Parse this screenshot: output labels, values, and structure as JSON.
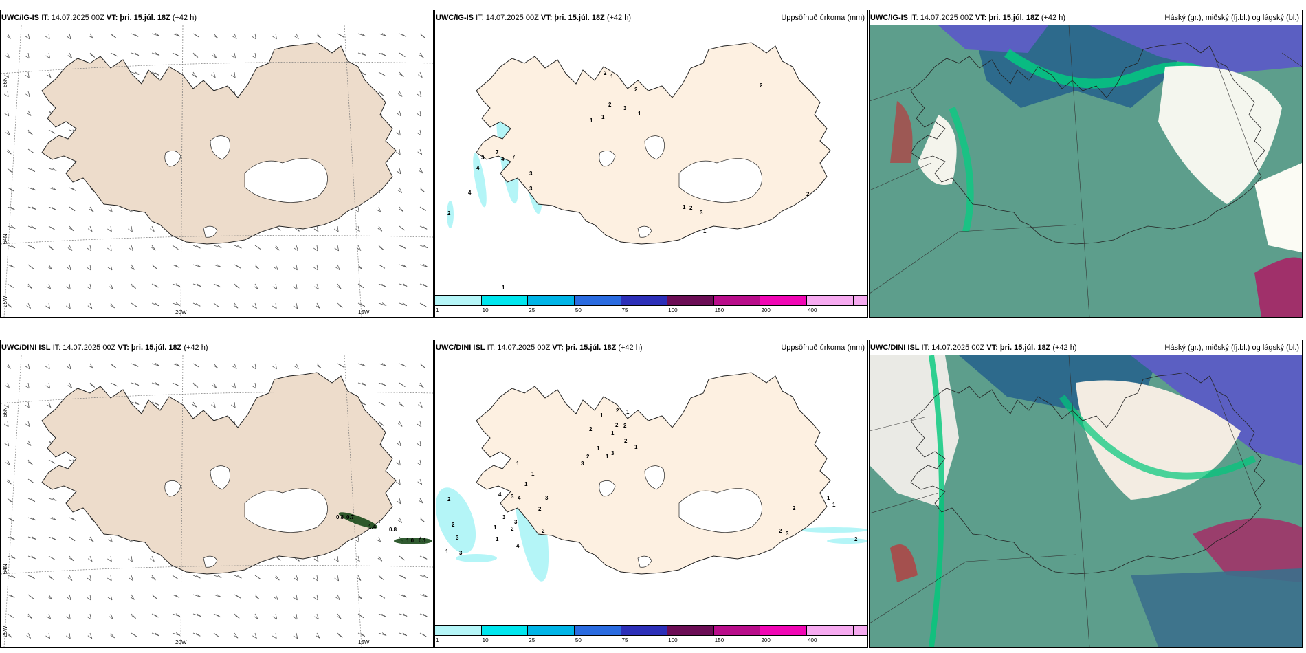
{
  "panels": {
    "p1": {
      "model": "UWC/IG-IS",
      "it": "IT: 14.07.2025 00Z",
      "vt_label": "VT:",
      "vt": "þri. 15.júl. 18Z",
      "lead": "(+42 h)"
    },
    "p2": {
      "model": "UWC/IG-IS",
      "it": "IT: 14.07.2025 00Z",
      "vt_label": "VT:",
      "vt": "þri. 15.júl. 18Z",
      "lead": "(+42 h)",
      "right": "Uppsöfnuð úrkoma (mm)"
    },
    "p3": {
      "model": "UWC/IG-IS",
      "it": "IT: 14.07.2025 00Z",
      "vt_label": "VT:",
      "vt": "þri. 15.júl. 18Z",
      "lead": "(+42 h)",
      "right": "Háský (gr.), miðský (fj.bl.) og lágský (bl.)"
    },
    "p4": {
      "model": "UWC/DINI ISL",
      "it": "IT: 14.07.2025 00Z",
      "vt_label": "VT:",
      "vt": "þri. 15.júl. 18Z",
      "lead": "(+42 h)"
    },
    "p5": {
      "model": "UWC/DINI ISL",
      "it": "IT: 14.07.2025 00Z",
      "vt_label": "VT:",
      "vt": "þri. 15.júl. 18Z",
      "lead": "(+42 h)",
      "right": "Uppsöfnuð úrkoma (mm)"
    },
    "p6": {
      "model": "UWC/DINI ISL",
      "it": "IT: 14.07.2025 00Z",
      "vt_label": "VT:",
      "vt": "þri. 15.júl. 18Z",
      "lead": "(+42 h)",
      "right": "Háský (gr.), miðský (fj.bl.) og lágský (bl.)"
    }
  },
  "axis_labels": {
    "lat66": "66N",
    "lat64": "64N",
    "lon25": "25W",
    "lon20": "20W",
    "lon15": "15W"
  },
  "colorbar": {
    "labels": [
      "1",
      "10",
      "25",
      "50",
      "75",
      "100",
      "150",
      "200",
      "400"
    ],
    "colors": [
      "#b4f5f7",
      "#00e6ee",
      "#00b4e6",
      "#2a6be0",
      "#2c2fb8",
      "#6b0d55",
      "#b80d8a",
      "#f006b4",
      "#f6aaf0"
    ]
  },
  "precip_labels_top": [
    "2",
    "4",
    "4",
    "3",
    "7",
    "4",
    "7",
    "3",
    "3",
    "1",
    "2",
    "1",
    "2",
    "1",
    "1",
    "2",
    "3",
    "1",
    "2",
    "2",
    "1",
    "2",
    "3",
    "1"
  ],
  "precip_labels_bottom": [
    "2",
    "2",
    "3",
    "3",
    "1",
    "3",
    "1",
    "1",
    "4",
    "3",
    "3",
    "4",
    "2",
    "3",
    "2",
    "1",
    "4",
    "1",
    "1",
    "2",
    "3",
    "2",
    "1",
    "3",
    "1",
    "2",
    "1",
    "2",
    "1",
    "2",
    "1",
    "2",
    "2",
    "1",
    "2",
    "1",
    "1",
    "2",
    "3",
    "2"
  ],
  "wind_labels": [
    "0.8",
    "0.7",
    "1.4",
    "0.8",
    "1.0",
    "0.1"
  ],
  "colors": {
    "land": "#eddccb",
    "land_precip": "#fdf0e1",
    "cloud_high": "#5a9c8a",
    "cloud_mid": "#2c6b8f",
    "cloud_low": "#5a5fc0",
    "green_front": "#00c87a"
  }
}
